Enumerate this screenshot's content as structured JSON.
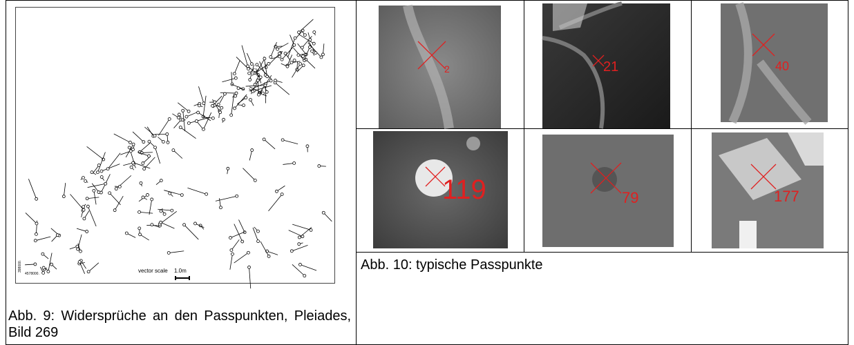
{
  "figure_9": {
    "plot": {
      "scale_label": "vector scale",
      "scale_value": "1.0m",
      "x_coord": "4578000.",
      "y_coord": "398000."
    },
    "caption": "Abb. 9: Widersprüche an den Passpunkten, Pleiades, Bild 269"
  },
  "figure_10": {
    "patches": [
      {
        "label": "2"
      },
      {
        "label": "21"
      },
      {
        "label": "40"
      },
      {
        "label": "119"
      },
      {
        "label": "79"
      },
      {
        "label": "177"
      }
    ],
    "caption": "Abb. 10: typische Passpunkte"
  }
}
